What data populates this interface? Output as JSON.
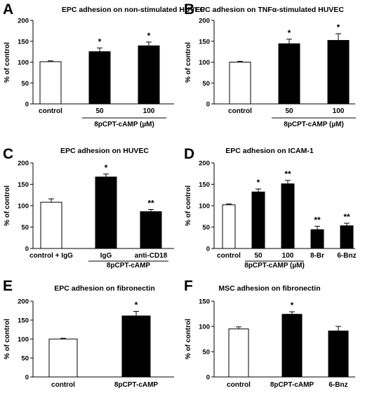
{
  "chart_data": [
    {
      "panel": "A",
      "type": "bar",
      "title": "EPC adhesion on non-stimulated HUVEC",
      "ylabel": "% of control",
      "ylim": [
        0,
        200
      ],
      "yticks": [
        0,
        50,
        100,
        150,
        200
      ],
      "categories": [
        "control",
        "50",
        "100"
      ],
      "values": [
        101,
        125,
        139
      ],
      "errors": [
        2,
        9,
        9
      ],
      "significance": [
        "",
        "*",
        "*"
      ],
      "bar_colors": [
        "#ffffff",
        "#000000",
        "#000000"
      ],
      "group_label": "8pCPT-cAMP (µM)",
      "group_span": [
        1,
        2
      ]
    },
    {
      "panel": "B",
      "type": "bar",
      "title": "EPC adhesion on TNFα-stimulated HUVEC",
      "ylabel": "% of control",
      "ylim": [
        0,
        200
      ],
      "yticks": [
        0,
        50,
        100,
        150,
        200
      ],
      "categories": [
        "control",
        "50",
        "100"
      ],
      "values": [
        100,
        144,
        152
      ],
      "errors": [
        2,
        11,
        16
      ],
      "significance": [
        "",
        "*",
        "*"
      ],
      "bar_colors": [
        "#ffffff",
        "#000000",
        "#000000"
      ],
      "group_label": "8pCPT-cAMP (µM)",
      "group_span": [
        1,
        2
      ]
    },
    {
      "panel": "C",
      "type": "bar",
      "title": "EPC adhesion on HUVEC",
      "ylabel": "% of control",
      "ylim": [
        0,
        200
      ],
      "yticks": [
        0,
        50,
        100,
        150,
        200
      ],
      "categories": [
        "control + IgG",
        "IgG",
        "anti-CD18"
      ],
      "values": [
        108,
        167,
        86
      ],
      "errors": [
        8,
        7,
        5
      ],
      "significance": [
        "",
        "*",
        "**"
      ],
      "bar_colors": [
        "#ffffff",
        "#000000",
        "#000000"
      ],
      "group_label": "8pCPT-cAMP",
      "group_span": [
        1,
        2
      ]
    },
    {
      "panel": "D",
      "type": "bar",
      "title": "EPC adhesion on ICAM-1",
      "ylabel": "% of control",
      "ylim": [
        0,
        200
      ],
      "yticks": [
        0,
        50,
        100,
        150,
        200
      ],
      "categories": [
        "control",
        "50",
        "100",
        "8-Br",
        "6-Bnz"
      ],
      "values": [
        102,
        132,
        151,
        44,
        53
      ],
      "errors": [
        2,
        7,
        8,
        8,
        6
      ],
      "significance": [
        "",
        "*",
        "**",
        "**",
        "**"
      ],
      "bar_colors": [
        "#ffffff",
        "#000000",
        "#000000",
        "#000000",
        "#000000"
      ],
      "group_label": "8pCPT-cAMP (µM)",
      "group_span": [
        1,
        2
      ]
    },
    {
      "panel": "E",
      "type": "bar",
      "title": "EPC adhesion on fibronectin",
      "ylabel": "% of control",
      "ylim": [
        0,
        200
      ],
      "yticks": [
        0,
        50,
        100,
        150,
        200
      ],
      "categories": [
        "control",
        "8pCPT-cAMP"
      ],
      "values": [
        100,
        161
      ],
      "errors": [
        2,
        12
      ],
      "significance": [
        "",
        "*"
      ],
      "bar_colors": [
        "#ffffff",
        "#000000"
      ]
    },
    {
      "panel": "F",
      "type": "bar",
      "title": "MSC adhesion on fibronectin",
      "ylabel": "% of control",
      "ylim": [
        0,
        150
      ],
      "yticks": [
        0,
        50,
        100,
        150
      ],
      "categories": [
        "control",
        "8pCPT-cAMP",
        "6-Bnz"
      ],
      "values": [
        95,
        124,
        91
      ],
      "errors": [
        4,
        5,
        9
      ],
      "significance": [
        "",
        "*",
        ""
      ],
      "bar_colors": [
        "#ffffff",
        "#000000",
        "#000000"
      ]
    }
  ]
}
